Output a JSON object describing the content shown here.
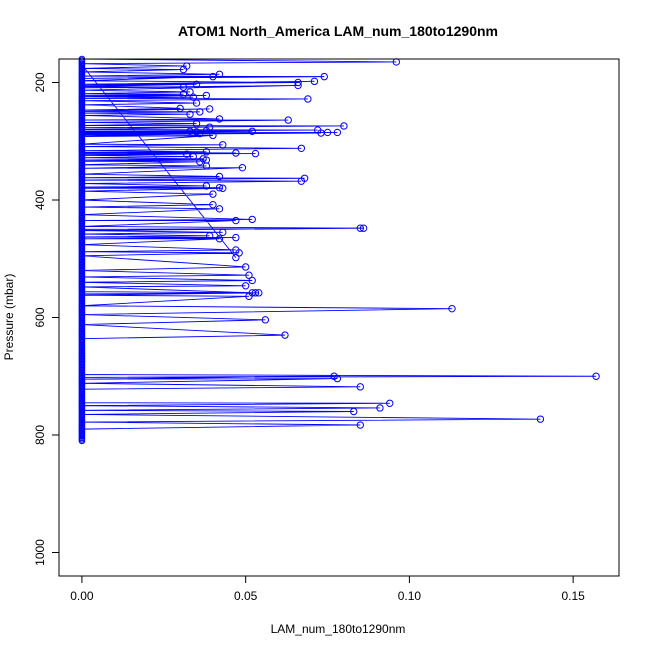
{
  "chart_data": {
    "type": "line",
    "title": "ATOM1 North_America LAM_num_180to1290nm",
    "xlabel": "LAM_num_180to1290nm",
    "ylabel": "Pressure (mbar)",
    "xlim": [
      -0.007,
      0.164
    ],
    "ylim": [
      1040,
      160
    ],
    "y_reversed": true,
    "x_ticks": [
      0.0,
      0.05,
      0.1,
      0.15
    ],
    "x_tick_labels": [
      "0.00",
      "0.05",
      "0.10",
      "0.15"
    ],
    "y_ticks": [
      200,
      400,
      600,
      800,
      1000
    ],
    "y_tick_labels": [
      "200",
      "400",
      "600",
      "800",
      "1000"
    ],
    "grid": false,
    "colors": {
      "series": "#0000ff",
      "axes": "#000000"
    },
    "series": [
      {
        "points": [
          [
            0.0,
            160
          ],
          [
            0.096,
            165
          ],
          [
            0.0,
            168
          ],
          [
            0.032,
            172
          ],
          [
            0.0,
            176
          ],
          [
            0.031,
            178
          ],
          [
            0.0,
            182
          ],
          [
            0.042,
            186
          ],
          [
            0.0,
            189
          ],
          [
            0.074,
            190
          ],
          [
            0.0,
            193
          ],
          [
            0.04,
            190
          ],
          [
            0.0,
            197
          ],
          [
            0.066,
            200
          ],
          [
            0.0,
            203
          ],
          [
            0.071,
            198
          ],
          [
            0.0,
            205
          ],
          [
            0.035,
            203
          ],
          [
            0.0,
            207
          ],
          [
            0.031,
            208
          ],
          [
            0.0,
            209
          ],
          [
            0.066,
            205
          ],
          [
            0.0,
            213
          ],
          [
            0.033,
            216
          ],
          [
            0.0,
            219
          ],
          [
            0.031,
            220
          ],
          [
            0.0,
            222
          ],
          [
            0.038,
            222
          ],
          [
            0.0,
            224
          ],
          [
            0.034,
            225
          ],
          [
            0.0,
            227
          ],
          [
            0.069,
            228
          ],
          [
            0.0,
            231
          ],
          [
            0.035,
            235
          ],
          [
            0.0,
            238
          ],
          [
            0.03,
            244
          ],
          [
            0.0,
            247
          ],
          [
            0.039,
            245
          ],
          [
            0.0,
            249
          ],
          [
            0.036,
            250
          ],
          [
            0.0,
            252
          ],
          [
            0.033,
            254
          ],
          [
            0.0,
            256
          ],
          [
            0.042,
            262
          ],
          [
            0.0,
            264
          ],
          [
            0.063,
            264
          ],
          [
            0.0,
            268
          ],
          [
            0.035,
            270
          ],
          [
            0.0,
            273
          ],
          [
            0.08,
            274
          ],
          [
            0.0,
            277
          ],
          [
            0.039,
            276
          ],
          [
            0.0,
            280
          ],
          [
            0.072,
            281
          ],
          [
            0.0,
            283
          ],
          [
            0.038,
            282
          ],
          [
            0.0,
            284
          ],
          [
            0.033,
            283
          ],
          [
            0.0,
            285
          ],
          [
            0.052,
            283
          ],
          [
            0.0,
            286
          ],
          [
            0.078,
            285
          ],
          [
            0.0,
            287
          ],
          [
            0.035,
            284
          ],
          [
            0.0,
            288
          ],
          [
            0.073,
            286
          ],
          [
            0.0,
            289
          ],
          [
            0.075,
            285
          ],
          [
            0.0,
            290
          ],
          [
            0.036,
            287
          ],
          [
            0.0,
            292
          ],
          [
            0.04,
            290
          ],
          [
            0.0,
            305
          ],
          [
            0.043,
            306
          ],
          [
            0.0,
            309
          ],
          [
            0.067,
            312
          ],
          [
            0.0,
            316
          ],
          [
            0.038,
            318
          ],
          [
            0.0,
            319
          ],
          [
            0.047,
            320
          ],
          [
            0.0,
            321
          ],
          [
            0.053,
            321
          ],
          [
            0.0,
            322
          ],
          [
            0.032,
            322
          ],
          [
            0.0,
            324
          ],
          [
            0.034,
            326
          ],
          [
            0.0,
            328
          ],
          [
            0.037,
            330
          ],
          [
            0.0,
            332
          ],
          [
            0.038,
            332
          ],
          [
            0.0,
            334
          ],
          [
            0.036,
            335
          ],
          [
            0.0,
            340
          ],
          [
            0.038,
            342
          ],
          [
            0.0,
            346
          ],
          [
            0.049,
            345
          ],
          [
            0.0,
            356
          ],
          [
            0.042,
            360
          ],
          [
            0.0,
            362
          ],
          [
            0.068,
            363
          ],
          [
            0.0,
            366
          ],
          [
            0.067,
            368
          ],
          [
            0.0,
            372
          ],
          [
            0.038,
            376
          ],
          [
            0.0,
            378
          ],
          [
            0.042,
            379
          ],
          [
            0.0,
            380
          ],
          [
            0.043,
            380
          ],
          [
            0.0,
            385
          ],
          [
            0.04,
            390
          ],
          [
            0.0,
            400
          ],
          [
            0.04,
            408
          ],
          [
            0.0,
            412
          ],
          [
            0.042,
            415
          ],
          [
            0.0,
            425
          ],
          [
            0.052,
            433
          ],
          [
            0.0,
            435
          ],
          [
            0.047,
            435
          ],
          [
            0.0,
            445
          ],
          [
            0.085,
            448
          ],
          [
            0.0,
            450
          ],
          [
            0.086,
            448
          ],
          [
            0.0,
            452
          ],
          [
            0.043,
            455
          ],
          [
            0.0,
            458
          ],
          [
            0.039,
            461
          ],
          [
            0.0,
            463
          ],
          [
            0.047,
            464
          ],
          [
            0.0,
            466
          ],
          [
            0.042,
            466
          ],
          [
            0.0,
            476
          ],
          [
            0.047,
            485
          ],
          [
            0.0,
            488
          ],
          [
            0.048,
            490
          ],
          [
            0.0,
            495
          ],
          [
            0.05,
            514
          ],
          [
            0.0,
            520
          ],
          [
            0.051,
            528
          ],
          [
            0.0,
            531
          ],
          [
            0.052,
            537
          ],
          [
            0.0,
            540
          ],
          [
            0.05,
            546
          ],
          [
            0.0,
            548
          ],
          [
            0.052,
            558
          ],
          [
            0.0,
            556
          ],
          [
            0.053,
            558
          ],
          [
            0.0,
            560
          ],
          [
            0.054,
            558
          ],
          [
            0.0,
            562
          ],
          [
            0.051,
            564
          ],
          [
            0.0,
            580
          ],
          [
            0.113,
            585
          ],
          [
            0.0,
            595
          ],
          [
            0.056,
            604
          ],
          [
            0.0,
            612
          ],
          [
            0.062,
            630
          ],
          [
            0.0,
            636
          ],
          [
            0.0,
            697
          ],
          [
            0.157,
            700
          ],
          [
            0.0,
            702
          ],
          [
            0.077,
            700
          ],
          [
            0.0,
            705
          ],
          [
            0.078,
            704
          ],
          [
            0.0,
            712
          ],
          [
            0.085,
            718
          ],
          [
            0.0,
            722
          ],
          [
            0.0,
            745
          ],
          [
            0.094,
            746
          ],
          [
            0.0,
            750
          ],
          [
            0.091,
            754
          ],
          [
            0.0,
            758
          ],
          [
            0.083,
            760
          ],
          [
            0.0,
            765
          ],
          [
            0.14,
            773
          ],
          [
            0.0,
            778
          ],
          [
            0.085,
            783
          ],
          [
            0.0,
            790
          ],
          [
            0.0,
            810
          ],
          [
            0.0,
            170
          ],
          [
            0.047,
            498
          ]
        ]
      }
    ]
  }
}
